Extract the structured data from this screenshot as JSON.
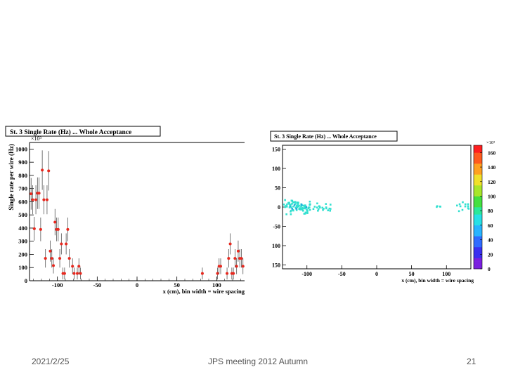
{
  "slide": {
    "footer_date": "2021/2/25",
    "footer_meeting": "JPS meeting 2012 Autumn",
    "page_number": "21"
  },
  "colors": {
    "marker": "#e8281e",
    "errorbar": "#555555",
    "hit": "#33e0d0"
  },
  "chart_data": [
    {
      "type": "scatter",
      "title": "St. 3 Single Rate (Hz) ... Whole Acceptance",
      "ylabel": "Single rate per wire (Hz)",
      "xlabel": "x (cm), bin width = wire spacing",
      "exponent_label": "×10³",
      "xlim": [
        -135,
        135
      ],
      "ylim": [
        0,
        1050
      ],
      "xticks": [
        -100,
        -50,
        0,
        50,
        100
      ],
      "yticks": [
        0,
        100,
        200,
        300,
        400,
        500,
        600,
        700,
        800,
        900,
        1000
      ],
      "points": [
        {
          "x": -133,
          "y": 660,
          "err": 120
        },
        {
          "x": -131,
          "y": 615,
          "err": 110
        },
        {
          "x": -129,
          "y": 395,
          "err": 90
        },
        {
          "x": -127,
          "y": 615,
          "err": 110
        },
        {
          "x": -125,
          "y": 665,
          "err": 120
        },
        {
          "x": -123,
          "y": 665,
          "err": 120
        },
        {
          "x": -121,
          "y": 390,
          "err": 90
        },
        {
          "x": -119,
          "y": 840,
          "err": 150
        },
        {
          "x": -117,
          "y": 615,
          "err": 110
        },
        {
          "x": -115,
          "y": 170,
          "err": 70
        },
        {
          "x": -113,
          "y": 615,
          "err": 110
        },
        {
          "x": -111,
          "y": 835,
          "err": 150
        },
        {
          "x": -109,
          "y": 225,
          "err": 80
        },
        {
          "x": -107,
          "y": 170,
          "err": 70
        },
        {
          "x": -105,
          "y": 115,
          "err": 60
        },
        {
          "x": -103,
          "y": 445,
          "err": 100
        },
        {
          "x": -101,
          "y": 390,
          "err": 90
        },
        {
          "x": -99,
          "y": 390,
          "err": 90
        },
        {
          "x": -97,
          "y": 170,
          "err": 70
        },
        {
          "x": -95,
          "y": 280,
          "err": 80
        },
        {
          "x": -93,
          "y": 55,
          "err": 45
        },
        {
          "x": -91,
          "y": 55,
          "err": 45
        },
        {
          "x": -89,
          "y": 280,
          "err": 80
        },
        {
          "x": -87,
          "y": 390,
          "err": 90
        },
        {
          "x": -85,
          "y": 170,
          "err": 70
        },
        {
          "x": -81,
          "y": 110,
          "err": 60
        },
        {
          "x": -79,
          "y": 55,
          "err": 45
        },
        {
          "x": -75,
          "y": 55,
          "err": 45
        },
        {
          "x": -73,
          "y": 110,
          "err": 60
        },
        {
          "x": -71,
          "y": 55,
          "err": 45
        },
        {
          "x": 82,
          "y": 55,
          "err": 45
        },
        {
          "x": 101,
          "y": 55,
          "err": 45
        },
        {
          "x": 103,
          "y": 110,
          "err": 60
        },
        {
          "x": 105,
          "y": 110,
          "err": 60
        },
        {
          "x": 113,
          "y": 55,
          "err": 45
        },
        {
          "x": 115,
          "y": 170,
          "err": 70
        },
        {
          "x": 117,
          "y": 280,
          "err": 80
        },
        {
          "x": 119,
          "y": 55,
          "err": 45
        },
        {
          "x": 121,
          "y": 55,
          "err": 45
        },
        {
          "x": 123,
          "y": 170,
          "err": 70
        },
        {
          "x": 125,
          "y": 110,
          "err": 60
        },
        {
          "x": 127,
          "y": 225,
          "err": 80
        },
        {
          "x": 129,
          "y": 170,
          "err": 70
        },
        {
          "x": 131,
          "y": 170,
          "err": 70
        },
        {
          "x": 133,
          "y": 110,
          "err": 60
        }
      ]
    },
    {
      "type": "heatmap",
      "title": "St. 3 Single Rate (Hz) ... Whole Acceptance",
      "xlabel": "x (cm), bin width = wire spacing",
      "exponent_label": "×10³",
      "xlim": [
        -135,
        135
      ],
      "ylim": [
        -160,
        160
      ],
      "xticks": [
        -100,
        -50,
        0,
        50,
        100
      ],
      "yticks": [
        {
          "value": 150,
          "label": "150"
        },
        {
          "value": 100,
          "label": "100"
        },
        {
          "value": 50,
          "label": "50"
        },
        {
          "value": 0,
          "label": "0"
        },
        {
          "value": -50,
          "label": "-50"
        },
        {
          "value": -100,
          "label": "100"
        },
        {
          "value": -150,
          "label": "150"
        }
      ],
      "zlim": [
        0,
        170
      ],
      "zticks": [
        0,
        20,
        40,
        60,
        80,
        100,
        120,
        140,
        160
      ],
      "clusters": [
        {
          "x_range": [
            -133,
            -95
          ],
          "y_range": [
            -25,
            25
          ],
          "count": 90,
          "density": "high"
        },
        {
          "x_range": [
            -95,
            -65
          ],
          "y_range": [
            -15,
            15
          ],
          "count": 20,
          "density": "low"
        },
        {
          "x_range": [
            85,
            95
          ],
          "y_range": [
            -5,
            5
          ],
          "count": 4,
          "density": "low"
        },
        {
          "x_range": [
            115,
            133
          ],
          "y_range": [
            -20,
            20
          ],
          "count": 12,
          "density": "low"
        }
      ]
    }
  ]
}
